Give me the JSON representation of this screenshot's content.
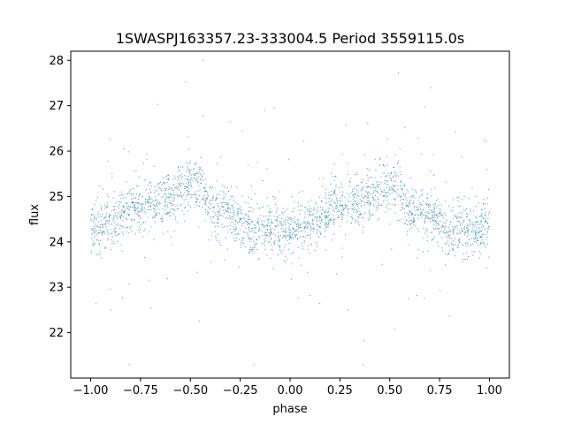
{
  "chart_data": {
    "type": "scatter",
    "title": "1SWASPJ163357.23-333004.5 Period 3559115.0s",
    "xlabel": "phase",
    "ylabel": "flux",
    "xlim": [
      -1.1,
      1.1
    ],
    "ylim": [
      21.0,
      28.2
    ],
    "x_ticks": [
      -1.0,
      -0.75,
      -0.5,
      -0.25,
      0.0,
      0.25,
      0.5,
      0.75,
      1.0
    ],
    "x_tick_labels": [
      "−1.00",
      "−0.75",
      "−0.50",
      "−0.25",
      "0.00",
      "0.25",
      "0.50",
      "0.75",
      "1.00"
    ],
    "y_ticks": [
      22,
      23,
      24,
      25,
      26,
      27,
      28
    ],
    "y_tick_labels": [
      "22",
      "23",
      "24",
      "25",
      "26",
      "27",
      "28"
    ],
    "grid": false,
    "marker_color": "#1f77b4",
    "phase_range": [
      -1.0,
      1.0
    ],
    "phase_profile": {
      "phase": [
        0.0,
        0.1,
        0.2,
        0.3,
        0.4,
        0.45,
        0.5,
        0.55,
        0.6,
        0.7,
        0.8,
        0.9,
        1.0
      ],
      "median_flux": [
        24.3,
        24.35,
        24.7,
        24.85,
        24.9,
        25.2,
        25.3,
        25.2,
        24.7,
        24.6,
        24.3,
        24.25,
        24.3
      ]
    }
  }
}
